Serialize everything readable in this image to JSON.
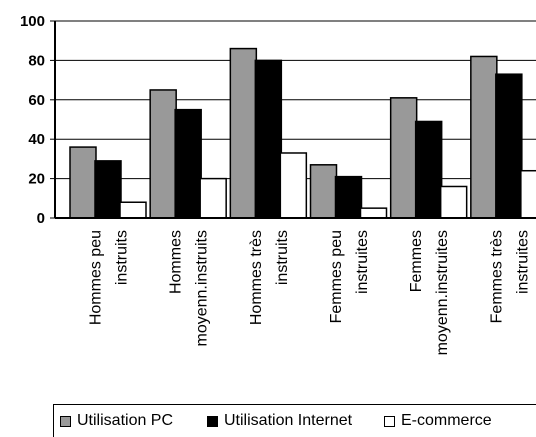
{
  "chart_data": {
    "type": "bar",
    "title": "",
    "xlabel": "",
    "ylabel": "",
    "ylim": [
      0,
      100
    ],
    "yticks": [
      "0",
      "20",
      "40",
      "60",
      "80",
      "100"
    ],
    "grid": true,
    "legend_position": "bottom",
    "categories": [
      [
        "Hommes peu",
        "instruits"
      ],
      [
        "Hommes",
        "moyenn.instruits"
      ],
      [
        "Hommes très",
        "instruits"
      ],
      [
        "Femmes peu",
        "instruites"
      ],
      [
        "Femmes",
        "moyenn.instruites"
      ],
      [
        "Femmes très",
        "instruites"
      ]
    ],
    "series": [
      {
        "name": "Utilisation PC",
        "color": "#999999",
        "values": [
          36,
          65,
          86,
          27,
          61,
          82
        ]
      },
      {
        "name": "Utilisation Internet",
        "color": "#000000",
        "values": [
          29,
          55,
          80,
          21,
          49,
          73
        ]
      },
      {
        "name": "E-commerce",
        "color": "#ffffff",
        "values": [
          8,
          20,
          33,
          5,
          16,
          24
        ]
      }
    ]
  }
}
